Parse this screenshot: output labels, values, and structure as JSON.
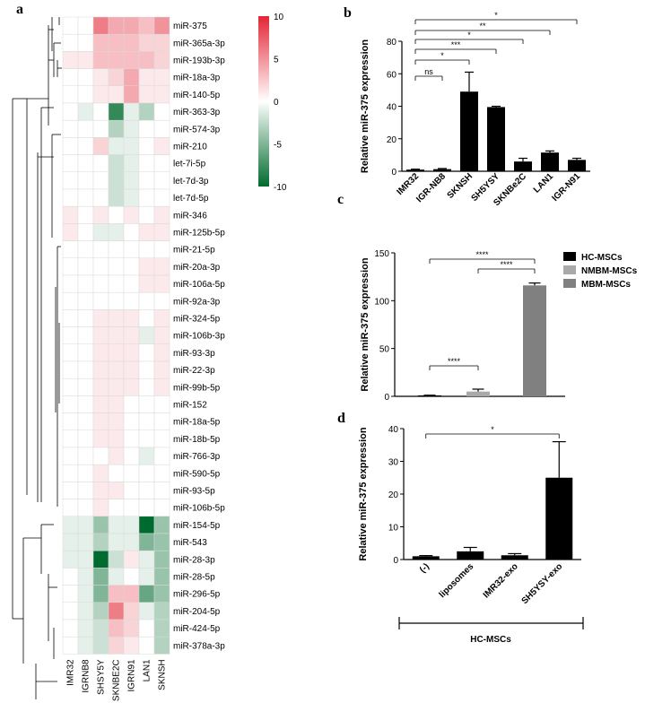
{
  "panels": {
    "a": "a",
    "b": "b",
    "c": "c",
    "d": "d"
  },
  "colors": {
    "high": "#e32636",
    "mid": "#ffffff",
    "low": "#006b2e",
    "black": "#000000",
    "lightgray": "#a9a9a9",
    "midgray": "#808080"
  },
  "chart_data": [
    {
      "type": "heatmap",
      "panel": "a",
      "columns": [
        "IMR32",
        "IGRNB8",
        "SHSY5Y",
        "SKNBE2C",
        "IGRN91",
        "LAN1",
        "SKNSH"
      ],
      "rows": [
        "miR-375",
        "miR-365a-3p",
        "miR-193b-3p",
        "miR-18a-3p",
        "miR-140-5p",
        "miR-363-3p",
        "miR-574-3p",
        "miR-210",
        "let-7i-5p",
        "let-7d-3p",
        "let-7d-5p",
        "miR-346",
        "miR-125b-5p",
        "miR-21-5p",
        "miR-20a-3p",
        "miR-106a-5p",
        "miR-92a-3p",
        "miR-324-5p",
        "miR-106b-3p",
        "miR-93-3p",
        "miR-22-3p",
        "miR-99b-5p",
        "miR-152",
        "miR-18a-5p",
        "miR-18b-5p",
        "miR-766-3p",
        "miR-590-5p",
        "miR-93-5p",
        "miR-106b-5p",
        "miR-154-5p",
        "miR-543",
        "miR-28-3p",
        "miR-28-5p",
        "miR-296-5p",
        "miR-204-5p",
        "miR-424-5p",
        "miR-378a-3p"
      ],
      "values": [
        [
          0,
          0,
          6,
          4,
          4,
          3,
          5
        ],
        [
          0,
          0,
          3,
          3,
          3,
          2,
          2
        ],
        [
          1,
          1,
          3,
          3,
          3,
          3,
          2
        ],
        [
          0,
          0,
          1,
          2,
          4,
          1,
          1
        ],
        [
          0,
          0,
          1,
          1,
          4,
          1,
          1
        ],
        [
          0,
          -1,
          0,
          -8,
          -1,
          -3,
          0
        ],
        [
          0,
          0,
          0,
          -3,
          -1,
          0,
          0
        ],
        [
          0,
          0,
          2,
          -1,
          -1,
          0,
          1
        ],
        [
          0,
          0,
          0,
          -2,
          -1,
          0,
          0
        ],
        [
          0,
          0,
          0,
          -2,
          -1,
          0,
          0
        ],
        [
          0,
          0,
          0,
          -2,
          -1,
          0,
          0
        ],
        [
          1,
          0,
          1,
          0,
          1,
          0,
          1
        ],
        [
          1,
          0,
          -1,
          -1,
          0,
          1,
          1
        ],
        [
          0,
          0,
          0,
          0,
          0,
          0,
          0
        ],
        [
          0,
          0,
          0,
          0,
          0,
          1,
          1
        ],
        [
          0,
          0,
          0,
          0,
          0,
          1,
          1
        ],
        [
          0,
          0,
          0,
          0,
          0,
          0,
          0
        ],
        [
          0,
          0,
          1,
          1,
          1,
          0,
          1
        ],
        [
          0,
          0,
          1,
          1,
          1,
          -1,
          1
        ],
        [
          0,
          0,
          1,
          1,
          1,
          0,
          1
        ],
        [
          0,
          0,
          1,
          1,
          1,
          0,
          1
        ],
        [
          0,
          0,
          1,
          1,
          1,
          0,
          1
        ],
        [
          0,
          0,
          1,
          1,
          0,
          0,
          0
        ],
        [
          0,
          0,
          1,
          1,
          0,
          0,
          0
        ],
        [
          0,
          0,
          1,
          1,
          0,
          0,
          0
        ],
        [
          0,
          0,
          0,
          1,
          0,
          -1,
          0
        ],
        [
          0,
          0,
          1,
          0,
          0,
          0,
          0
        ],
        [
          0,
          0,
          1,
          1,
          0,
          0,
          0
        ],
        [
          0,
          0,
          1,
          0,
          0,
          0,
          0
        ],
        [
          -1,
          -1,
          -4,
          -1,
          -1,
          -10,
          -4
        ],
        [
          -1,
          -1,
          -3,
          -1,
          -1,
          -5,
          -4
        ],
        [
          -1,
          -1,
          -10,
          -2,
          1,
          -1,
          -4
        ],
        [
          0,
          -1,
          -5,
          -1,
          0,
          -1,
          -4
        ],
        [
          0,
          -1,
          -5,
          3,
          3,
          -6,
          -4
        ],
        [
          0,
          -1,
          -3,
          6,
          2,
          -1,
          -3
        ],
        [
          0,
          -1,
          -2,
          3,
          2,
          0,
          -3
        ],
        [
          0,
          -1,
          -2,
          2,
          1,
          0,
          -3
        ]
      ],
      "colorbar": {
        "ticks": [
          "10",
          "5",
          "0",
          "-5",
          "-10"
        ],
        "min": -10,
        "max": 10
      }
    },
    {
      "type": "bar",
      "panel": "b",
      "ylabel": "Relative miR-375 expression",
      "ylim": [
        0,
        80
      ],
      "yticks": [
        "0",
        "20",
        "40",
        "60",
        "80"
      ],
      "categories": [
        "IMR32",
        "IGR-NB8",
        "SKNSH",
        "SH5YSY",
        "SKNBe2C",
        "LAN1",
        "IGR-N91"
      ],
      "values": [
        1,
        1.3,
        49,
        39.5,
        6,
        11.5,
        7
      ],
      "errors": [
        0.3,
        0.4,
        12,
        0.5,
        2,
        1,
        1
      ],
      "significance": [
        {
          "from": 0,
          "to": 1,
          "label": "ns"
        },
        {
          "from": 0,
          "to": 2,
          "label": "*"
        },
        {
          "from": 0,
          "to": 3,
          "label": "***"
        },
        {
          "from": 0,
          "to": 4,
          "label": "*"
        },
        {
          "from": 0,
          "to": 5,
          "label": "**"
        },
        {
          "from": 0,
          "to": 6,
          "label": "*"
        }
      ]
    },
    {
      "type": "bar",
      "panel": "c",
      "ylabel": "Relative miR-375 expression",
      "ylim": [
        0,
        150
      ],
      "yticks": [
        "0",
        "50",
        "100",
        "150"
      ],
      "series": [
        {
          "name": "HC-MSCs",
          "value": 1,
          "error": 0.2,
          "color": "#000000"
        },
        {
          "name": "NMBM-MSCs",
          "value": 5,
          "error": 2.5,
          "color": "#a9a9a9"
        },
        {
          "name": "MBM-MSCs",
          "value": 116,
          "error": 2.5,
          "color": "#808080"
        }
      ],
      "legend": [
        "HC-MSCs",
        "NMBM-MSCs",
        "MBM-MSCs"
      ],
      "significance": [
        {
          "from": 0,
          "to": 1,
          "label": "****"
        },
        {
          "from": 1,
          "to": 2,
          "label": "****"
        },
        {
          "from": 0,
          "to": 2,
          "label": "****"
        }
      ]
    },
    {
      "type": "bar",
      "panel": "d",
      "ylabel": "Relative miR-375 expression",
      "ylim": [
        0,
        40
      ],
      "yticks": [
        "0",
        "10",
        "20",
        "30",
        "40"
      ],
      "categories": [
        "(-)",
        "liposomes",
        "IMR32-exo",
        "SH5YSY-exo"
      ],
      "values": [
        1,
        2.5,
        1.3,
        25
      ],
      "errors": [
        0.2,
        1.2,
        0.5,
        11
      ],
      "group_label": "HC-MSCs",
      "significance": [
        {
          "from": 0,
          "to": 3,
          "label": "*"
        }
      ]
    }
  ]
}
